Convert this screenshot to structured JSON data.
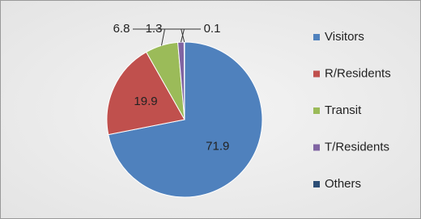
{
  "chart_data": {
    "type": "pie",
    "categories": [
      "Visitors",
      "R/Residents",
      "Transit",
      "T/Residents",
      "Others"
    ],
    "values": [
      71.9,
      19.9,
      6.8,
      1.3,
      0.1
    ],
    "colors": [
      "#4f81bd",
      "#c0504d",
      "#9bbb59",
      "#8064a2",
      "#2c4d75"
    ],
    "legend": "right"
  }
}
